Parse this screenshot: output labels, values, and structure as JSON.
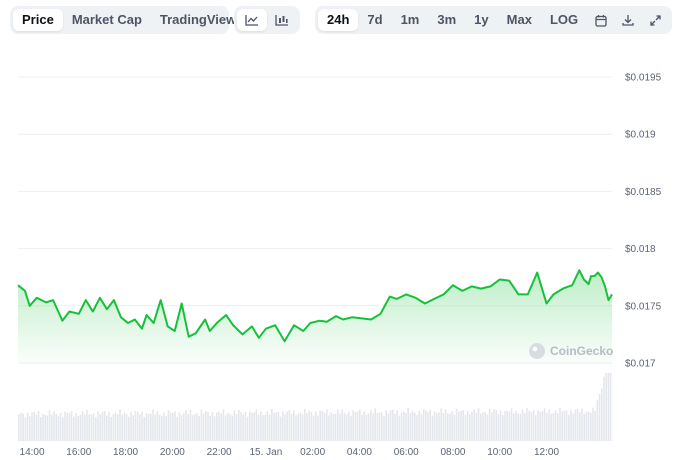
{
  "toolbar": {
    "metric_tabs": [
      "Price",
      "Market Cap",
      "TradingView"
    ],
    "range_tabs": [
      "24h",
      "7d",
      "1m",
      "3m",
      "1y",
      "Max",
      "LOG"
    ],
    "icons": [
      "line-chart-icon",
      "candlestick-icon",
      "calendar-icon",
      "download-icon",
      "expand-icon"
    ]
  },
  "watermark": "CoinGecko",
  "colors": {
    "line": "#16c13a",
    "grid": "#eceff3",
    "volume": "#e4e7eb"
  },
  "chart_data": {
    "type": "area",
    "y_ticks": [
      "$0.0195",
      "$0.019",
      "$0.0185",
      "$0.018",
      "$0.0175",
      "$0.017"
    ],
    "x_ticks": [
      "14:00",
      "16:00",
      "18:00",
      "20:00",
      "22:00",
      "15. Jan",
      "02:00",
      "04:00",
      "06:00",
      "08:00",
      "10:00",
      "12:00"
    ],
    "ylim": [
      0.017,
      0.0195
    ],
    "x_hours": [
      13.4,
      13.7,
      13.9,
      14.2,
      14.6,
      14.9,
      15.3,
      15.6,
      16.0,
      16.3,
      16.6,
      16.9,
      17.2,
      17.5,
      17.8,
      18.1,
      18.4,
      18.7,
      18.9,
      19.2,
      19.5,
      19.8,
      20.1,
      20.4,
      20.7,
      21.0,
      21.4,
      21.6,
      21.9,
      22.3,
      22.6,
      23.0,
      23.4,
      23.7,
      24.0,
      24.4,
      24.8,
      25.2,
      25.6,
      25.9,
      26.3,
      26.6,
      27.0,
      27.3,
      27.7,
      28.1,
      28.5,
      28.9,
      29.3,
      29.6,
      30.0,
      30.4,
      30.8,
      31.2,
      31.6,
      32.0,
      32.4,
      32.8,
      33.2,
      33.6,
      34.0,
      34.4,
      34.8,
      35.2,
      35.6,
      36.0,
      36.3,
      36.7,
      37.1,
      37.4,
      37.6,
      37.8,
      37.9,
      38.05,
      38.2,
      38.35,
      38.5,
      38.65,
      38.8
    ],
    "prices": [
      0.01768,
      0.01763,
      0.0175,
      0.01757,
      0.01753,
      0.01755,
      0.01737,
      0.01745,
      0.01743,
      0.01755,
      0.01745,
      0.01757,
      0.01747,
      0.01755,
      0.0174,
      0.01735,
      0.01738,
      0.0173,
      0.01742,
      0.01735,
      0.01755,
      0.01732,
      0.01728,
      0.01752,
      0.01723,
      0.01726,
      0.01738,
      0.01728,
      0.01735,
      0.01742,
      0.01733,
      0.01725,
      0.01732,
      0.01722,
      0.0173,
      0.01733,
      0.01719,
      0.01733,
      0.01728,
      0.01735,
      0.01737,
      0.01736,
      0.01741,
      0.01738,
      0.0174,
      0.01739,
      0.01738,
      0.01743,
      0.01758,
      0.01756,
      0.0176,
      0.01757,
      0.01752,
      0.01756,
      0.0176,
      0.01768,
      0.01763,
      0.01767,
      0.01765,
      0.01767,
      0.01773,
      0.01772,
      0.0176,
      0.0176,
      0.01779,
      0.01752,
      0.0176,
      0.01765,
      0.01768,
      0.01781,
      0.01773,
      0.01769,
      0.01776,
      0.01776,
      0.01779,
      0.01775,
      0.01767,
      0.01755,
      0.0176
    ],
    "volume_note": ""
  }
}
